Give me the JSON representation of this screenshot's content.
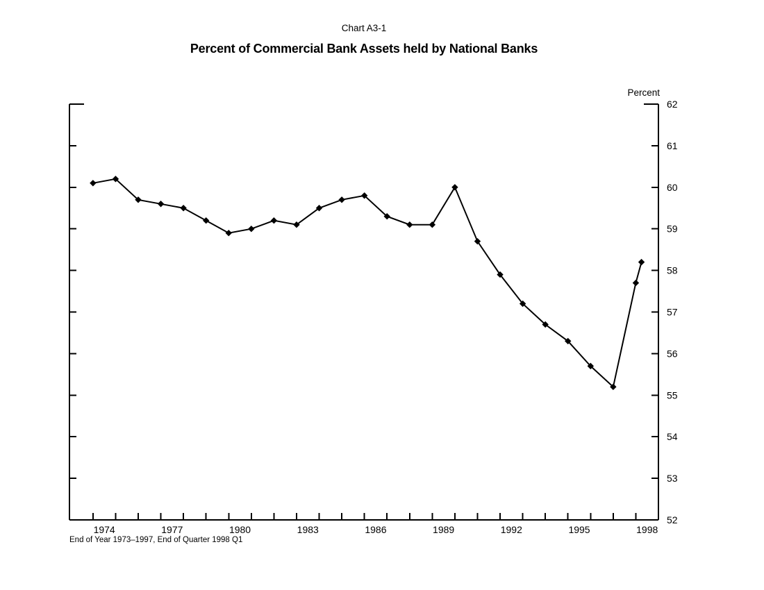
{
  "header": {
    "chart_number": "Chart A3-1",
    "title": "Percent of Commercial Bank Assets held by National Banks"
  },
  "chart_data": {
    "type": "line",
    "supertitle": "Chart A3-1",
    "title": "Percent of Commercial Bank Assets held by National Banks",
    "unit_label": "Percent",
    "footnote": "End of Year 1973–1997, End of Quarter 1998 Q1",
    "grid": false,
    "legend": "none",
    "line_color": "#000000",
    "marker": "diamond",
    "x_axis": {
      "min": 1971.96,
      "max": 1998,
      "tick_years_start": 1973,
      "tick_years_end": 1997,
      "tick_meaning": "end of year",
      "label_years": [
        1974,
        1977,
        1980,
        1983,
        1986,
        1989,
        1992,
        1995,
        1998
      ]
    },
    "y_axis": {
      "min": 52,
      "max": 62,
      "tick_step": 1,
      "tick_labels": [
        "52",
        "53",
        "54",
        "55",
        "56",
        "57",
        "58",
        "59",
        "60",
        "61",
        "62"
      ],
      "labels_side": "right"
    },
    "series": [
      {
        "name": "Percent of commercial bank assets held by national banks",
        "points": [
          {
            "label": "1973",
            "t": 1973,
            "value": 60.1
          },
          {
            "label": "1974",
            "t": 1974,
            "value": 60.2
          },
          {
            "label": "1975",
            "t": 1975,
            "value": 59.7
          },
          {
            "label": "1976",
            "t": 1976,
            "value": 59.6
          },
          {
            "label": "1977",
            "t": 1977,
            "value": 59.5
          },
          {
            "label": "1978",
            "t": 1978,
            "value": 59.2
          },
          {
            "label": "1979",
            "t": 1979,
            "value": 58.9
          },
          {
            "label": "1980",
            "t": 1980,
            "value": 59.0
          },
          {
            "label": "1981",
            "t": 1981,
            "value": 59.2
          },
          {
            "label": "1982",
            "t": 1982,
            "value": 59.1
          },
          {
            "label": "1983",
            "t": 1983,
            "value": 59.5
          },
          {
            "label": "1984",
            "t": 1984,
            "value": 59.7
          },
          {
            "label": "1985",
            "t": 1985,
            "value": 59.8
          },
          {
            "label": "1986",
            "t": 1986,
            "value": 59.3
          },
          {
            "label": "1987",
            "t": 1987,
            "value": 59.1
          },
          {
            "label": "1988",
            "t": 1988,
            "value": 59.1
          },
          {
            "label": "1989",
            "t": 1989,
            "value": 60.0
          },
          {
            "label": "1990",
            "t": 1990,
            "value": 58.7
          },
          {
            "label": "1991",
            "t": 1991,
            "value": 57.9
          },
          {
            "label": "1992",
            "t": 1992,
            "value": 57.2
          },
          {
            "label": "1993",
            "t": 1993,
            "value": 56.7
          },
          {
            "label": "1994",
            "t": 1994,
            "value": 56.3
          },
          {
            "label": "1995",
            "t": 1995,
            "value": 55.7
          },
          {
            "label": "1996",
            "t": 1996,
            "value": 55.2
          },
          {
            "label": "1997",
            "t": 1997,
            "value": 57.7
          },
          {
            "label": "1998 Q1",
            "t": 1997.25,
            "value": 58.2
          }
        ]
      }
    ]
  }
}
